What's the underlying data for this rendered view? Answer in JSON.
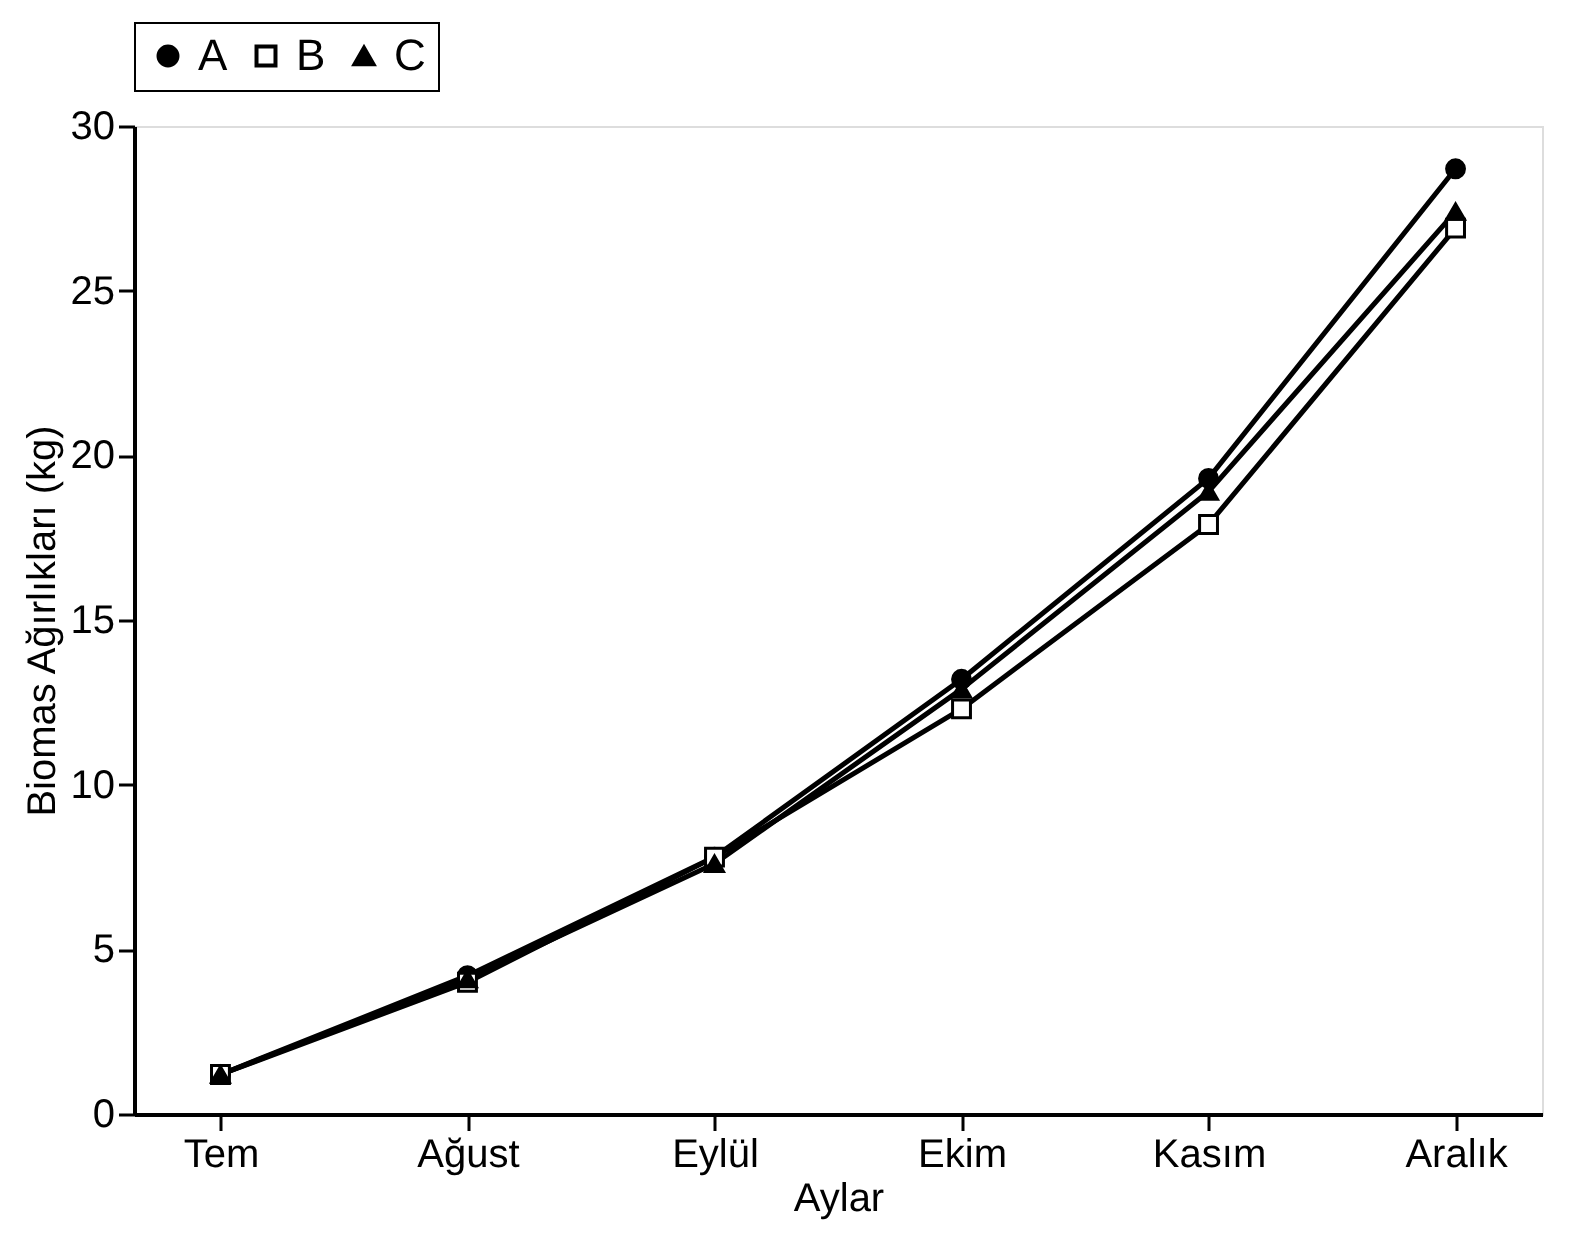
{
  "chart_data": {
    "type": "line",
    "xlabel": "Aylar",
    "ylabel": "Biomas Ağırlıkları (kg)",
    "categories": [
      "Tem",
      "Ağust",
      "Eylül",
      "Ekim",
      "Kasım",
      "Aralık"
    ],
    "series": [
      {
        "name": "A",
        "color": "#000000",
        "marker": "circle",
        "values": [
          1.2,
          4.2,
          7.8,
          13.2,
          19.3,
          28.7
        ]
      },
      {
        "name": "B",
        "color": "#000000",
        "marker": "square",
        "values": [
          1.2,
          4.0,
          7.8,
          12.3,
          17.9,
          26.9
        ]
      },
      {
        "name": "C",
        "color": "#000000",
        "marker": "triangle",
        "values": [
          1.2,
          4.1,
          7.6,
          12.9,
          18.9,
          27.4
        ]
      }
    ],
    "ylim": [
      0,
      30
    ],
    "yticks": [
      0,
      5,
      10,
      15,
      20,
      25,
      30
    ],
    "grid": false,
    "legend": "top",
    "line_style": "solid"
  }
}
